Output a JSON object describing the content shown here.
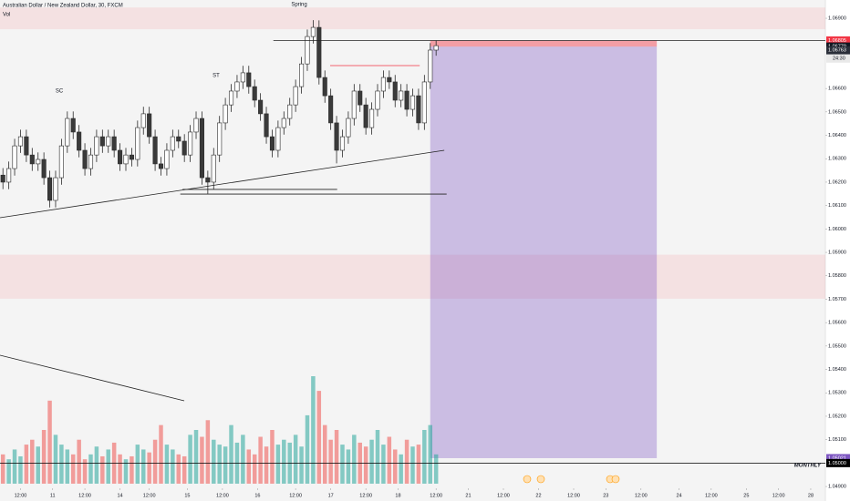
{
  "chart_data": {
    "type": "candlestick",
    "title": "Australian Dollar / New Zealand Dollar, 30, FXCM",
    "volume_label": "Vol",
    "annotations": [
      "SC",
      "ST",
      "Spring",
      "MONTHLY"
    ],
    "countdown": "24:30",
    "xlim": [
      0,
      141
    ],
    "xticks": [
      {
        "value": 3.5,
        "label": "12:00"
      },
      {
        "value": 9,
        "label": "11"
      },
      {
        "value": 14.5,
        "label": "12:00"
      },
      {
        "value": 20.5,
        "label": "14"
      },
      {
        "value": 25.5,
        "label": "12:00"
      },
      {
        "value": 32,
        "label": "15"
      },
      {
        "value": 38,
        "label": "12:00"
      },
      {
        "value": 44,
        "label": "16"
      },
      {
        "value": 50.5,
        "label": "12:00"
      },
      {
        "value": 56.5,
        "label": "17"
      },
      {
        "value": 62.5,
        "label": "12:00"
      },
      {
        "value": 68,
        "label": "18"
      },
      {
        "value": 74.5,
        "label": "12:00"
      },
      {
        "value": 80,
        "label": "21"
      },
      {
        "value": 86,
        "label": "12:00"
      },
      {
        "value": 92,
        "label": "22"
      },
      {
        "value": 98,
        "label": "12:00"
      },
      {
        "value": 103.5,
        "label": "23"
      },
      {
        "value": 109.5,
        "label": "12:00"
      },
      {
        "value": 116,
        "label": "24"
      },
      {
        "value": 121.5,
        "label": "12:00"
      },
      {
        "value": 127.5,
        "label": "25"
      },
      {
        "value": 133,
        "label": "12:00"
      },
      {
        "value": 138.5,
        "label": "28"
      }
    ],
    "ylim": [
      1.04838,
      1.06978
    ],
    "yticks": [
      {
        "value": 1.069,
        "label": "1.06900"
      },
      {
        "value": 1.066,
        "label": "1.06600"
      },
      {
        "value": 1.065,
        "label": "1.06500"
      },
      {
        "value": 1.064,
        "label": "1.06400"
      },
      {
        "value": 1.063,
        "label": "1.06300"
      },
      {
        "value": 1.062,
        "label": "1.06200"
      },
      {
        "value": 1.061,
        "label": "1.06100"
      },
      {
        "value": 1.06,
        "label": "1.06000"
      },
      {
        "value": 1.059,
        "label": "1.05900"
      },
      {
        "value": 1.058,
        "label": "1.05800"
      },
      {
        "value": 1.057,
        "label": "1.05700"
      },
      {
        "value": 1.056,
        "label": "1.05600"
      },
      {
        "value": 1.055,
        "label": "1.05500"
      },
      {
        "value": 1.054,
        "label": "1.05400"
      },
      {
        "value": 1.053,
        "label": "1.05300"
      },
      {
        "value": 1.052,
        "label": "1.05200"
      },
      {
        "value": 1.051,
        "label": "1.05100"
      },
      {
        "value": 1.049,
        "label": "1.04900"
      }
    ],
    "price_tags": [
      {
        "value": 1.06805,
        "label": "1.06805",
        "color": "#f23645"
      },
      {
        "value": 1.06779,
        "label": "1.06779",
        "color": "#131722"
      },
      {
        "value": 1.06763,
        "label": "1.06763",
        "color": "#2a2e39"
      },
      {
        "value": 1.05021,
        "label": "1.05021",
        "color": "#7e57c2"
      },
      {
        "value": 1.05,
        "label": "1.05000",
        "color": "#000000"
      }
    ],
    "up_color": "#ffffff",
    "down_color": "#3a3a3a",
    "wick_color": "#2a2a2a",
    "volume_up_color": "rgba(38,166,154,0.55)",
    "volume_down_color": "rgba(239,83,80,0.55)",
    "open": [
      1.0623,
      1.062,
      1.06258,
      1.06355,
      1.06394,
      1.06316,
      1.06278,
      1.06297,
      1.06219,
      1.06122,
      1.06219,
      1.06355,
      1.06472,
      1.06414,
      1.06336,
      1.06258,
      1.06316,
      1.06394,
      1.06355,
      1.06394,
      1.06336,
      1.06278,
      1.06316,
      1.06297,
      1.06433,
      1.06492,
      1.06394,
      1.06278,
      1.06258,
      1.06336,
      1.06394,
      1.06375,
      1.06316,
      1.06414,
      1.06472,
      1.06219,
      1.062,
      1.06316,
      1.06453,
      1.0653,
      1.06589,
      1.06628,
      1.06667,
      1.06608,
      1.0655,
      1.06492,
      1.06394,
      1.06336,
      1.06433,
      1.06472,
      1.0653,
      1.06608,
      1.06705,
      1.06822,
      1.06861,
      1.06647,
      1.06569,
      1.06453,
      1.06336,
      1.06394,
      1.06472,
      1.06589,
      1.0653,
      1.06433,
      1.06511,
      1.06589,
      1.06647,
      1.06628,
      1.0655,
      1.06589,
      1.06511,
      1.06569,
      1.06453,
      1.06628,
      1.06764
    ],
    "high": [
      1.0626,
      1.06288,
      1.06385,
      1.06424,
      1.06424,
      1.06346,
      1.06327,
      1.06327,
      1.06249,
      1.06249,
      1.06385,
      1.06502,
      1.06502,
      1.06444,
      1.06366,
      1.06346,
      1.06424,
      1.06424,
      1.06424,
      1.06424,
      1.06366,
      1.06346,
      1.06346,
      1.06463,
      1.06522,
      1.06522,
      1.06424,
      1.06308,
      1.06366,
      1.06424,
      1.06424,
      1.06405,
      1.06444,
      1.06502,
      1.06502,
      1.06249,
      1.06346,
      1.06483,
      1.0656,
      1.06619,
      1.06658,
      1.06697,
      1.06697,
      1.06638,
      1.0658,
      1.06522,
      1.06424,
      1.06463,
      1.06502,
      1.0656,
      1.06638,
      1.06735,
      1.06852,
      1.06892,
      1.06891,
      1.06677,
      1.06599,
      1.06483,
      1.06424,
      1.06502,
      1.06619,
      1.06619,
      1.0656,
      1.06541,
      1.06619,
      1.06677,
      1.06677,
      1.06658,
      1.06619,
      1.06619,
      1.06599,
      1.06599,
      1.06658,
      1.06794,
      1.06805
    ],
    "low": [
      1.0617,
      1.0617,
      1.06228,
      1.06325,
      1.06286,
      1.06248,
      1.06248,
      1.06189,
      1.06092,
      1.06092,
      1.06189,
      1.06325,
      1.06384,
      1.06306,
      1.06228,
      1.06228,
      1.06286,
      1.06325,
      1.06325,
      1.06306,
      1.06248,
      1.06248,
      1.06267,
      1.06267,
      1.06403,
      1.06364,
      1.06248,
      1.06228,
      1.06228,
      1.06306,
      1.06345,
      1.06286,
      1.06286,
      1.06384,
      1.06189,
      1.0615,
      1.0617,
      1.06286,
      1.06423,
      1.065,
      1.06559,
      1.06598,
      1.06578,
      1.0652,
      1.06462,
      1.06364,
      1.06306,
      1.06306,
      1.06403,
      1.06442,
      1.065,
      1.06578,
      1.06675,
      1.06792,
      1.06617,
      1.06539,
      1.06423,
      1.0628,
      1.06306,
      1.06364,
      1.06442,
      1.065,
      1.06403,
      1.06403,
      1.06481,
      1.06559,
      1.06598,
      1.0652,
      1.0652,
      1.06481,
      1.06481,
      1.06423,
      1.06423,
      1.06598,
      1.0674
    ],
    "close": [
      1.062,
      1.06258,
      1.06355,
      1.06394,
      1.06316,
      1.06278,
      1.06297,
      1.06219,
      1.06122,
      1.06219,
      1.06355,
      1.06472,
      1.06414,
      1.06336,
      1.06258,
      1.06316,
      1.06394,
      1.06355,
      1.06394,
      1.06336,
      1.06278,
      1.06316,
      1.06297,
      1.06433,
      1.06492,
      1.06394,
      1.06278,
      1.06258,
      1.06336,
      1.06394,
      1.06375,
      1.06316,
      1.06414,
      1.06472,
      1.06219,
      1.062,
      1.06316,
      1.06453,
      1.0653,
      1.06589,
      1.06628,
      1.06667,
      1.06608,
      1.0655,
      1.06492,
      1.06394,
      1.06336,
      1.06433,
      1.06472,
      1.0653,
      1.06608,
      1.06705,
      1.06822,
      1.06861,
      1.06647,
      1.06569,
      1.06453,
      1.06336,
      1.06394,
      1.06472,
      1.06589,
      1.0653,
      1.06433,
      1.06511,
      1.06589,
      1.06647,
      1.06628,
      1.0655,
      1.06589,
      1.06511,
      1.06569,
      1.06453,
      1.06628,
      1.06764,
      1.06783
    ],
    "volume": [
      30,
      25,
      35,
      28,
      40,
      45,
      38,
      55,
      85,
      50,
      40,
      35,
      30,
      45,
      25,
      30,
      38,
      28,
      35,
      42,
      30,
      25,
      28,
      40,
      35,
      32,
      45,
      60,
      40,
      35,
      30,
      28,
      50,
      55,
      48,
      65,
      45,
      40,
      38,
      60,
      42,
      50,
      35,
      30,
      48,
      38,
      55,
      40,
      45,
      42,
      50,
      38,
      70,
      110,
      95,
      60,
      45,
      55,
      40,
      35,
      50,
      42,
      38,
      45,
      55,
      40,
      48,
      35,
      30,
      45,
      38,
      40,
      55,
      60,
      30
    ],
    "zones": [
      {
        "from": 1.06946,
        "to": 1.06853,
        "color": "rgba(242,54,69,0.10)"
      },
      {
        "from": 1.0589,
        "to": 1.05702,
        "color": "rgba(242,54,69,0.10)"
      }
    ],
    "position": {
      "x_start": 73.5,
      "x_end": 112.2,
      "entry": 1.06779,
      "stop": 1.06805,
      "target": 1.05021,
      "stop_color": "rgba(242,54,69,0.45)",
      "target_color": "rgba(126,87,194,0.35)"
    },
    "drawings": [
      {
        "x1": 0,
        "y1": 1.06048,
        "x2": 75.9,
        "y2": 1.06336,
        "color": "#222222"
      },
      {
        "x1": 30.8,
        "y1": 1.06149,
        "x2": 76.3,
        "y2": 1.06149,
        "color": "#222222"
      },
      {
        "x1": 31.2,
        "y1": 1.06169,
        "x2": 57.6,
        "y2": 1.06169,
        "color": "#222222"
      },
      {
        "x1": 46.7,
        "y1": 1.06805,
        "x2": 141,
        "y2": 1.06805,
        "color": "#222222"
      },
      {
        "x1": 56.4,
        "y1": 1.06698,
        "x2": 71.7,
        "y2": 1.06698,
        "color": "#f23645"
      },
      {
        "x1": 0,
        "y1": 1.05,
        "x2": 141,
        "y2": 1.05,
        "color": "#000000"
      }
    ]
  }
}
